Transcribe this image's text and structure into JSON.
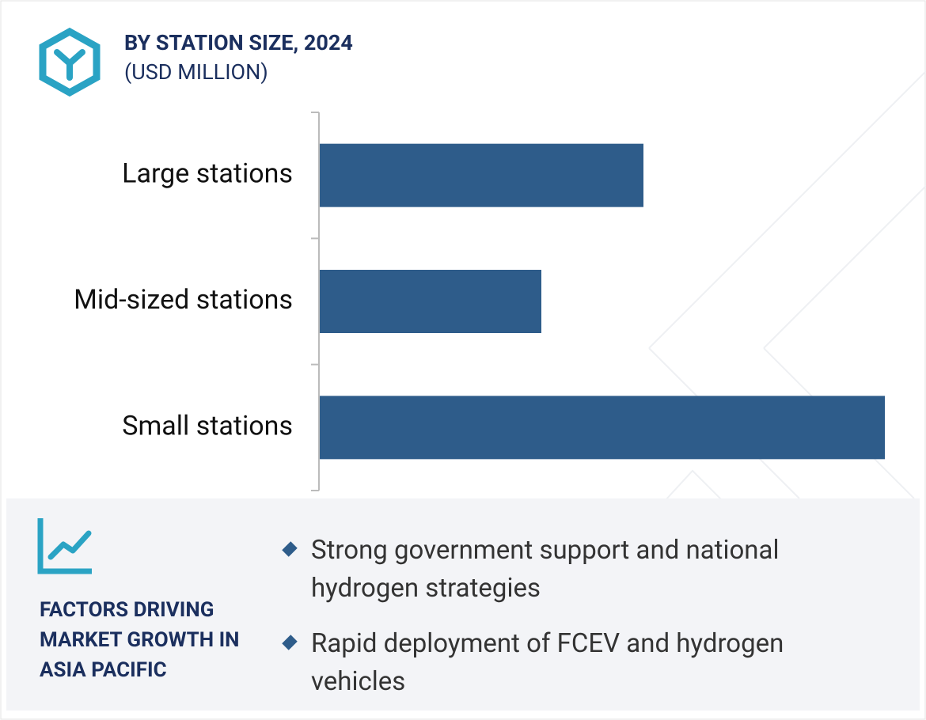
{
  "chart_data": {
    "type": "bar",
    "orientation": "horizontal",
    "title": "BY STATION SIZE, 2024",
    "subtitle": "(USD MILLION)",
    "categories": [
      "Large stations",
      "Mid-sized stations",
      "Small stations"
    ],
    "values": [
      409,
      280,
      714
    ],
    "color": "#2e5c8a"
  },
  "factors": {
    "heading": "FACTORS DRIVING MARKET GROWTH IN ASIA PACIFIC",
    "bullets": [
      "Strong government support and national hydrogen strategies",
      "Rapid deployment of FCEV and hydrogen vehicles"
    ]
  }
}
